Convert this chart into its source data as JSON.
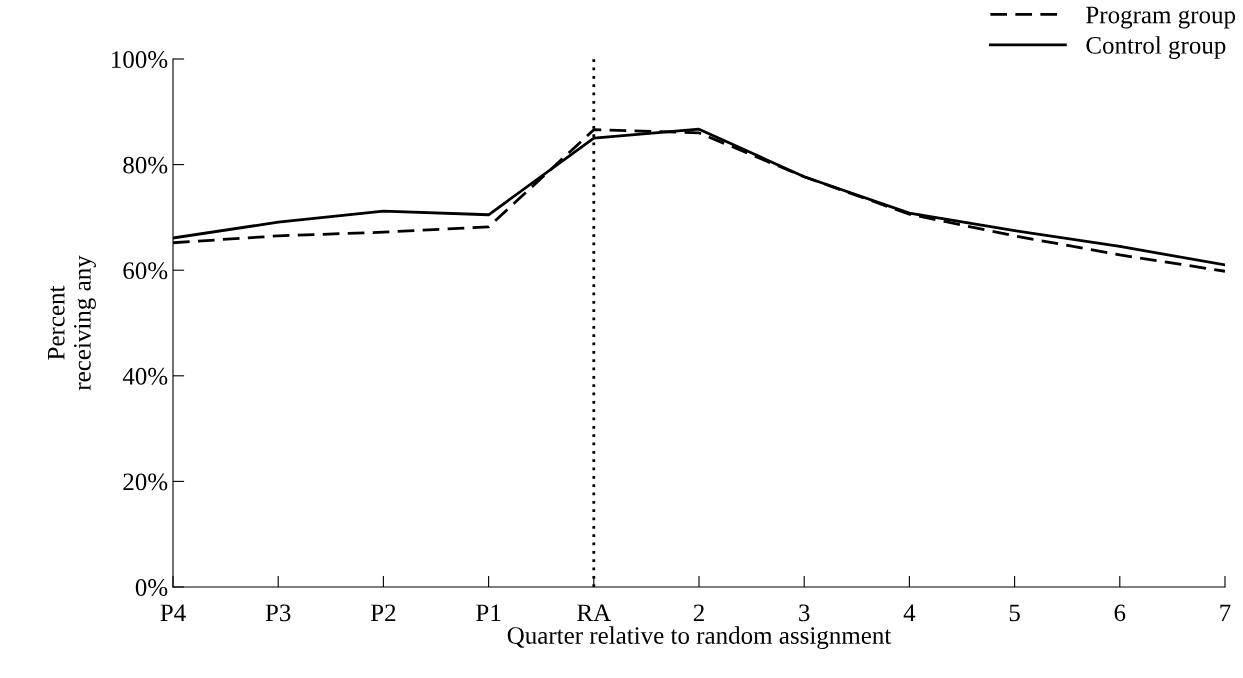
{
  "chart_data": {
    "type": "line",
    "xlabel": "Quarter relative to random assignment",
    "ylabel": "Percent\nreceiving any",
    "categories": [
      "P4",
      "P3",
      "P2",
      "P1",
      "RA",
      "2",
      "3",
      "4",
      "5",
      "6",
      "7"
    ],
    "series": [
      {
        "name": "Program group",
        "color": "#000000",
        "line_style": "dashed",
        "values": [
          65.2,
          66.5,
          67.2,
          68.2,
          86.6,
          86.0,
          77.7,
          70.6,
          66.5,
          62.9,
          59.8
        ]
      },
      {
        "name": "Control group",
        "color": "#000000",
        "line_style": "solid",
        "values": [
          66.1,
          69.1,
          71.2,
          70.5,
          85.0,
          86.7,
          77.7,
          70.8,
          67.5,
          64.5,
          61.0
        ]
      }
    ],
    "ylim": [
      0,
      100
    ],
    "yticks": [
      {
        "value": 0,
        "label": "0%"
      },
      {
        "value": 20,
        "label": "20%"
      },
      {
        "value": 40,
        "label": "40%"
      },
      {
        "value": 60,
        "label": "60%"
      },
      {
        "value": 80,
        "label": "80%"
      },
      {
        "value": 100,
        "label": "100%"
      }
    ],
    "ref_lines": [
      {
        "axis": "x",
        "value": "RA",
        "label": null,
        "color": "#000000",
        "line_style": "dotted"
      }
    ],
    "legend": "top right",
    "grid": false,
    "marker": "none"
  }
}
